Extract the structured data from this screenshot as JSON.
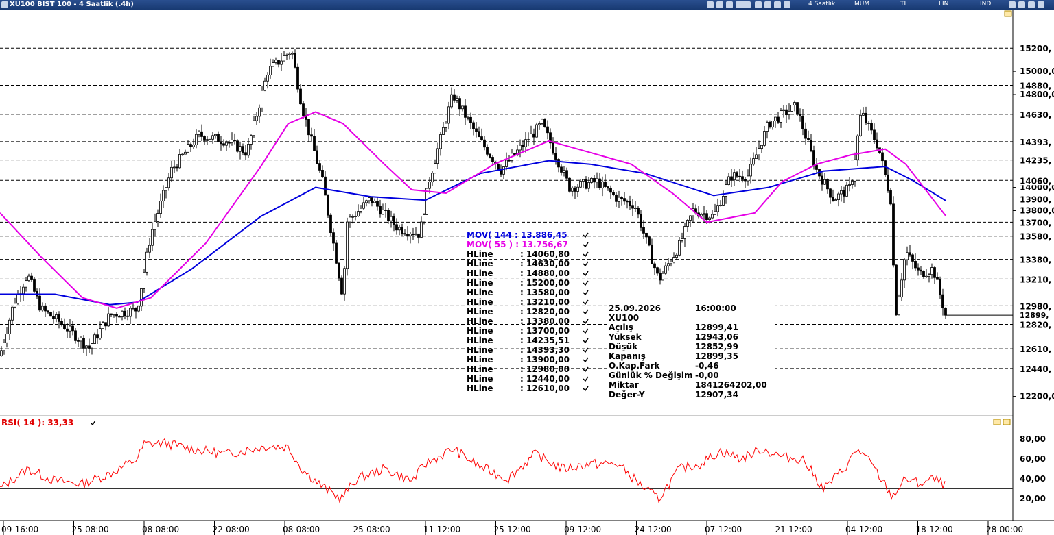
{
  "window": {
    "title": "XU100 BIST 100 - 4 Saatlik (.4h)",
    "period": "4 Saatlik",
    "chart_style": "MUM",
    "currency": "TL",
    "scale": "LIN",
    "indicator_menu": "IND"
  },
  "colors": {
    "mov144": "#0000dd",
    "mov55": "#e600e6",
    "rsi": "#ff0000",
    "candle": "#000000",
    "hline": "#000000"
  },
  "legend": {
    "mov144": "MOV( 144 : 13.886,45",
    "mov55": "MOV( 55 ) : 13.756,67",
    "hlines": [
      {
        "label": "HLine",
        "value": ": 14060,80"
      },
      {
        "label": "HLine",
        "value": ": 14630,00"
      },
      {
        "label": "HLine",
        "value": ": 14880,00"
      },
      {
        "label": "HLine",
        "value": ": 15200,00"
      },
      {
        "label": "HLine",
        "value": ": 13580,00"
      },
      {
        "label": "HLine",
        "value": ": 13210,00"
      },
      {
        "label": "HLine",
        "value": ": 12820,00"
      },
      {
        "label": "HLine",
        "value": ": 13380,00"
      },
      {
        "label": "HLine",
        "value": ": 13700,00"
      },
      {
        "label": "HLine",
        "value": ": 14235,51"
      },
      {
        "label": "HLine",
        "value": ": 14393,30"
      },
      {
        "label": "HLine",
        "value": ": 13900,00"
      },
      {
        "label": "HLine",
        "value": ": 12980,00"
      },
      {
        "label": "HLine",
        "value": ": 12440,00"
      },
      {
        "label": "HLine",
        "value": ": 12610,00"
      }
    ]
  },
  "info": [
    {
      "k": "25.09.2026",
      "v": "16:00:00"
    },
    {
      "k": "XU100",
      "v": ""
    },
    {
      "k": "Açılış",
      "v": "12899,41"
    },
    {
      "k": "Yüksek",
      "v": "12943,06"
    },
    {
      "k": "Düşük",
      "v": "12852,99"
    },
    {
      "k": "Kapanış",
      "v": "12899,35"
    },
    {
      "k": "O.Kap.Fark",
      "v": "-0,46"
    },
    {
      "k": "Günlük % Değişim",
      "v": "-0,00"
    },
    {
      "k": "Miktar",
      "v": "1841264202,00"
    },
    {
      "k": "Değer-Y",
      "v": "12907,34"
    }
  ],
  "rsi_label": "RSI( 14 ): 33,33",
  "price_axis": {
    "ticks": [
      "15000,0",
      "14800,0",
      "14000,0",
      "13800,0",
      "12200,0"
    ],
    "tick_values": [
      15000,
      14800,
      14000,
      13800,
      12200
    ],
    "hline_tags": [
      {
        "v": 15200,
        "t": "15200,"
      },
      {
        "v": 14880,
        "t": "14880,"
      },
      {
        "v": 14630,
        "t": "14630,"
      },
      {
        "v": 14393.3,
        "t": "14393,"
      },
      {
        "v": 14235.51,
        "t": "14235,"
      },
      {
        "v": 14060.8,
        "t": "14060,"
      },
      {
        "v": 13900,
        "t": "13900,"
      },
      {
        "v": 13700,
        "t": "13700,"
      },
      {
        "v": 13580,
        "t": "13580,"
      },
      {
        "v": 13380,
        "t": "13380,"
      },
      {
        "v": 13210,
        "t": "13210,"
      },
      {
        "v": 12980,
        "t": "12980,"
      },
      {
        "v": 12820,
        "t": "12820,"
      },
      {
        "v": 12610,
        "t": "12610,"
      },
      {
        "v": 12440,
        "t": "12440,"
      }
    ],
    "last_tag": "12899,"
  },
  "rsi_axis": {
    "ticks": [
      "80,00",
      "60,00",
      "40,00",
      "20,00"
    ],
    "tick_values": [
      80,
      60,
      40,
      20
    ],
    "levels": [
      70,
      30
    ]
  },
  "x_axis": {
    "labels": [
      "09-16:00",
      "25-08:00",
      "08-08:00",
      "22-08:00",
      "08-08:00",
      "25-08:00",
      "11-12:00",
      "25-12:00",
      "09-12:00",
      "24-12:00",
      "07-12:00",
      "21-12:00",
      "04-12:00",
      "18-12:00",
      "28-00:00"
    ]
  },
  "chart_data": {
    "type": "candlestick",
    "ylim": [
      12050,
      15520
    ],
    "hlines": [
      14060.8,
      14630,
      14880,
      15200,
      13580,
      13210,
      12820,
      13380,
      13700,
      14235.51,
      14393.3,
      13900,
      12980,
      12440,
      12610
    ],
    "last": {
      "open": 12899.41,
      "high": 12943.06,
      "low": 12852.99,
      "close": 12899.35
    },
    "ma144_last": 13886.45,
    "ma55_last": 13756.67,
    "rsi_last": 33.33,
    "price_path": [
      [
        0,
        12550
      ],
      [
        20,
        13000
      ],
      [
        40,
        13250
      ],
      [
        60,
        12950
      ],
      [
        85,
        12850
      ],
      [
        130,
        12620
      ],
      [
        160,
        12900
      ],
      [
        200,
        12950
      ],
      [
        220,
        13600
      ],
      [
        250,
        14150
      ],
      [
        290,
        14450
      ],
      [
        330,
        14400
      ],
      [
        360,
        14300
      ],
      [
        390,
        15000
      ],
      [
        425,
        15180
      ],
      [
        440,
        14700
      ],
      [
        470,
        14050
      ],
      [
        500,
        13050
      ],
      [
        505,
        13700
      ],
      [
        540,
        13900
      ],
      [
        580,
        13650
      ],
      [
        612,
        13600
      ],
      [
        625,
        14050
      ],
      [
        660,
        14800
      ],
      [
        700,
        14400
      ],
      [
        730,
        14150
      ],
      [
        760,
        14350
      ],
      [
        790,
        14550
      ],
      [
        830,
        14000
      ],
      [
        870,
        14050
      ],
      [
        900,
        13900
      ],
      [
        925,
        13850
      ],
      [
        960,
        13200
      ],
      [
        990,
        13500
      ],
      [
        1010,
        13800
      ],
      [
        1040,
        13750
      ],
      [
        1065,
        14100
      ],
      [
        1090,
        14100
      ],
      [
        1120,
        14550
      ],
      [
        1160,
        14700
      ],
      [
        1190,
        14150
      ],
      [
        1215,
        13900
      ],
      [
        1240,
        14000
      ],
      [
        1255,
        14650
      ],
      [
        1280,
        14350
      ],
      [
        1298,
        13900
      ],
      [
        1305,
        12900
      ],
      [
        1320,
        13450
      ],
      [
        1340,
        13250
      ],
      [
        1360,
        13300
      ],
      [
        1378,
        12900
      ]
    ],
    "ma144_path": [
      [
        0,
        13080
      ],
      [
        80,
        13080
      ],
      [
        160,
        12990
      ],
      [
        200,
        13010
      ],
      [
        280,
        13300
      ],
      [
        380,
        13750
      ],
      [
        460,
        14000
      ],
      [
        540,
        13920
      ],
      [
        620,
        13890
      ],
      [
        700,
        14120
      ],
      [
        800,
        14230
      ],
      [
        860,
        14200
      ],
      [
        940,
        14120
      ],
      [
        1040,
        13930
      ],
      [
        1120,
        14000
      ],
      [
        1200,
        14140
      ],
      [
        1290,
        14180
      ],
      [
        1330,
        14060
      ],
      [
        1378,
        13886.45
      ]
    ],
    "ma55_path": [
      [
        0,
        13780
      ],
      [
        60,
        13400
      ],
      [
        120,
        13050
      ],
      [
        170,
        12960
      ],
      [
        220,
        13050
      ],
      [
        300,
        13520
      ],
      [
        380,
        14180
      ],
      [
        420,
        14550
      ],
      [
        460,
        14650
      ],
      [
        500,
        14550
      ],
      [
        560,
        14200
      ],
      [
        600,
        13980
      ],
      [
        650,
        13950
      ],
      [
        720,
        14200
      ],
      [
        800,
        14400
      ],
      [
        860,
        14300
      ],
      [
        920,
        14200
      ],
      [
        980,
        13950
      ],
      [
        1030,
        13700
      ],
      [
        1100,
        13780
      ],
      [
        1140,
        14050
      ],
      [
        1190,
        14200
      ],
      [
        1240,
        14280
      ],
      [
        1290,
        14330
      ],
      [
        1320,
        14200
      ],
      [
        1378,
        13756.67
      ]
    ],
    "rsi_path": [
      [
        0,
        30
      ],
      [
        40,
        50
      ],
      [
        80,
        38
      ],
      [
        120,
        35
      ],
      [
        160,
        45
      ],
      [
        200,
        60
      ],
      [
        210,
        75
      ],
      [
        240,
        76
      ],
      [
        280,
        70
      ],
      [
        330,
        65
      ],
      [
        390,
        73
      ],
      [
        420,
        72
      ],
      [
        440,
        50
      ],
      [
        470,
        32
      ],
      [
        497,
        20
      ],
      [
        520,
        40
      ],
      [
        560,
        50
      ],
      [
        600,
        38
      ],
      [
        620,
        55
      ],
      [
        660,
        70
      ],
      [
        700,
        52
      ],
      [
        740,
        40
      ],
      [
        780,
        65
      ],
      [
        820,
        50
      ],
      [
        860,
        55
      ],
      [
        900,
        55
      ],
      [
        940,
        30
      ],
      [
        960,
        20
      ],
      [
        990,
        50
      ],
      [
        1020,
        55
      ],
      [
        1050,
        68
      ],
      [
        1080,
        60
      ],
      [
        1110,
        70
      ],
      [
        1140,
        62
      ],
      [
        1170,
        60
      ],
      [
        1200,
        30
      ],
      [
        1230,
        50
      ],
      [
        1250,
        70
      ],
      [
        1270,
        55
      ],
      [
        1300,
        22
      ],
      [
        1320,
        40
      ],
      [
        1340,
        35
      ],
      [
        1360,
        40
      ],
      [
        1378,
        33.33
      ]
    ]
  }
}
